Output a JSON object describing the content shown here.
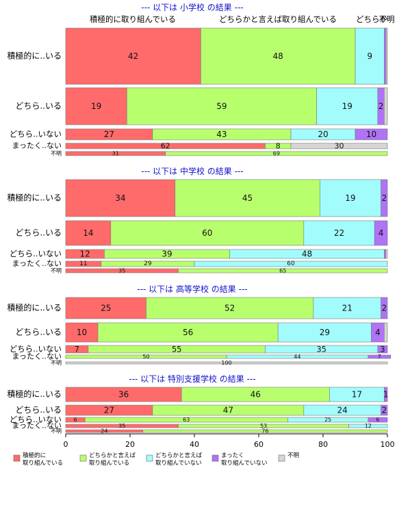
{
  "top_headers": [
    "積極的に取り組んでいる",
    "どちらかと言えば取り組んでいる",
    "どちらか",
    "不明"
  ],
  "colors": {
    "s1": "#FF6B6B",
    "s2": "#B8FF6E",
    "s3": "#A2FCFC",
    "s4": "#B073F7",
    "s5": "#D6D6D6",
    "divider": "#777777",
    "section_title": "#1010CC",
    "border": "#666666"
  },
  "legend": [
    {
      "key": "s1",
      "lines": [
        "積極的に",
        "取り組んでいる"
      ]
    },
    {
      "key": "s2",
      "lines": [
        "どちらかと言えば",
        "取り組んでいる"
      ]
    },
    {
      "key": "s3",
      "lines": [
        "どちらかと言えば",
        "取り組んでいない"
      ]
    },
    {
      "key": "s4",
      "lines": [
        "まったく",
        "取り組んでいない"
      ]
    },
    {
      "key": "s5",
      "lines": [
        "不明"
      ]
    }
  ],
  "chart_data": {
    "type": "bar",
    "orientation": "horizontal",
    "stacked": true,
    "xlim": [
      0,
      100
    ],
    "xticks": [
      0,
      20,
      40,
      60,
      80,
      100
    ],
    "panels": [
      {
        "title": "--- 以下は 小学校 の結果 ---",
        "rows": [
          {
            "label": "積極的に..いる",
            "segments": [
              {
                "s": "s1",
                "v": 42,
                "t": "42"
              },
              {
                "s": "s2",
                "v": 48,
                "t": "48"
              },
              {
                "s": "s3",
                "v": 9,
                "t": "9"
              },
              {
                "s": "s4",
                "v": 0.6,
                "t": ""
              },
              {
                "s": "s5",
                "v": 0.4,
                "t": ""
              }
            ]
          },
          {
            "label": "どちら..いる",
            "segments": [
              {
                "s": "s1",
                "v": 19,
                "t": "19"
              },
              {
                "s": "s2",
                "v": 59,
                "t": "59"
              },
              {
                "s": "s3",
                "v": 19,
                "t": "19"
              },
              {
                "s": "s4",
                "v": 2,
                "t": "2"
              },
              {
                "s": "s5",
                "v": 1,
                "t": ""
              }
            ]
          },
          {
            "label": "どちら..いない",
            "segments": [
              {
                "s": "s1",
                "v": 27,
                "t": "27"
              },
              {
                "s": "s2",
                "v": 43,
                "t": "43"
              },
              {
                "s": "s3",
                "v": 20,
                "t": "20"
              },
              {
                "s": "s4",
                "v": 10,
                "t": "10"
              }
            ]
          },
          {
            "label": "まったく..ない",
            "segments": [
              {
                "s": "s1",
                "v": 62,
                "t": "62"
              },
              {
                "s": "s2",
                "v": 8,
                "t": "8"
              },
              {
                "s": "s5",
                "v": 30,
                "t": "30"
              }
            ]
          },
          {
            "label": "不明",
            "segments": [
              {
                "s": "s1",
                "v": 31,
                "t": "31"
              },
              {
                "s": "s2",
                "v": 69,
                "t": "69"
              }
            ]
          }
        ]
      },
      {
        "title": "--- 以下は 中学校 の結果 ---",
        "rows": [
          {
            "label": "積極的に..いる",
            "segments": [
              {
                "s": "s1",
                "v": 34,
                "t": "34"
              },
              {
                "s": "s2",
                "v": 45,
                "t": "45"
              },
              {
                "s": "s3",
                "v": 19,
                "t": "19"
              },
              {
                "s": "s4",
                "v": 2,
                "t": "2"
              }
            ]
          },
          {
            "label": "どちら..いる",
            "segments": [
              {
                "s": "s1",
                "v": 14,
                "t": "14"
              },
              {
                "s": "s2",
                "v": 60,
                "t": "60"
              },
              {
                "s": "s3",
                "v": 22,
                "t": "22"
              },
              {
                "s": "s4",
                "v": 4,
                "t": "4"
              }
            ]
          },
          {
            "label": "どちら..いない",
            "segments": [
              {
                "s": "s1",
                "v": 12,
                "t": "12"
              },
              {
                "s": "s2",
                "v": 39,
                "t": "39"
              },
              {
                "s": "s3",
                "v": 48,
                "t": "48"
              },
              {
                "s": "s4",
                "v": 0.5,
                "t": ""
              },
              {
                "s": "s5",
                "v": 0.5,
                "t": ""
              }
            ]
          },
          {
            "label": "まったく..ない",
            "segments": [
              {
                "s": "s1",
                "v": 11,
                "t": "11"
              },
              {
                "s": "s2",
                "v": 29,
                "t": "29"
              },
              {
                "s": "s3",
                "v": 60,
                "t": "60"
              }
            ]
          },
          {
            "label": "不明",
            "segments": [
              {
                "s": "s1",
                "v": 35,
                "t": "35"
              },
              {
                "s": "s2",
                "v": 65,
                "t": "65"
              }
            ]
          }
        ]
      },
      {
        "title": "--- 以下は 高等学校 の結果 ---",
        "rows": [
          {
            "label": "積極的に..いる",
            "segments": [
              {
                "s": "s1",
                "v": 25,
                "t": "25"
              },
              {
                "s": "s2",
                "v": 52,
                "t": "52"
              },
              {
                "s": "s3",
                "v": 21,
                "t": "21"
              },
              {
                "s": "s4",
                "v": 2,
                "t": "2"
              }
            ]
          },
          {
            "label": "どちら..いる",
            "segments": [
              {
                "s": "s1",
                "v": 10,
                "t": "10"
              },
              {
                "s": "s2",
                "v": 56,
                "t": "56"
              },
              {
                "s": "s3",
                "v": 29,
                "t": "29"
              },
              {
                "s": "s4",
                "v": 4,
                "t": "4"
              },
              {
                "s": "s5",
                "v": 1,
                "t": ""
              }
            ]
          },
          {
            "label": "どちら..いない",
            "segments": [
              {
                "s": "s1",
                "v": 7,
                "t": "7"
              },
              {
                "s": "s2",
                "v": 55,
                "t": "55"
              },
              {
                "s": "s3",
                "v": 35,
                "t": "35"
              },
              {
                "s": "s4",
                "v": 3,
                "t": "3"
              }
            ]
          },
          {
            "label": "まったく..ない",
            "segments": [
              {
                "s": "s2",
                "v": 50,
                "t": "50"
              },
              {
                "s": "s3",
                "v": 44,
                "t": "44"
              },
              {
                "s": "s4",
                "v": 7,
                "t": "7"
              }
            ]
          },
          {
            "label": "不明",
            "segments": [
              {
                "s": "s5",
                "v": 100,
                "t": "100"
              }
            ]
          }
        ]
      },
      {
        "title": "--- 以下は 特別支援学校 の結果 ---",
        "rows": [
          {
            "label": "積極的に..いる",
            "segments": [
              {
                "s": "s1",
                "v": 36,
                "t": "36"
              },
              {
                "s": "s2",
                "v": 46,
                "t": "46"
              },
              {
                "s": "s3",
                "v": 17,
                "t": "17"
              },
              {
                "s": "s4",
                "v": 1,
                "t": "1"
              }
            ]
          },
          {
            "label": "どちら..いる",
            "segments": [
              {
                "s": "s1",
                "v": 27,
                "t": "27"
              },
              {
                "s": "s2",
                "v": 47,
                "t": "47"
              },
              {
                "s": "s3",
                "v": 24,
                "t": "24"
              },
              {
                "s": "s4",
                "v": 2,
                "t": "2"
              }
            ]
          },
          {
            "label": "どちら..いない",
            "segments": [
              {
                "s": "s1",
                "v": 6,
                "t": "6"
              },
              {
                "s": "s2",
                "v": 63,
                "t": "63"
              },
              {
                "s": "s3",
                "v": 25,
                "t": "25"
              },
              {
                "s": "s4",
                "v": 6,
                "t": "6"
              }
            ]
          },
          {
            "label": "まったく..ない",
            "segments": [
              {
                "s": "s1",
                "v": 35,
                "t": "35"
              },
              {
                "s": "s2",
                "v": 53,
                "t": "53"
              },
              {
                "s": "s3",
                "v": 12,
                "t": "12"
              }
            ]
          },
          {
            "label": "不明",
            "segments": [
              {
                "s": "s1",
                "v": 24,
                "t": "24"
              },
              {
                "s": "s2",
                "v": 76,
                "t": "76"
              }
            ]
          }
        ]
      }
    ]
  }
}
